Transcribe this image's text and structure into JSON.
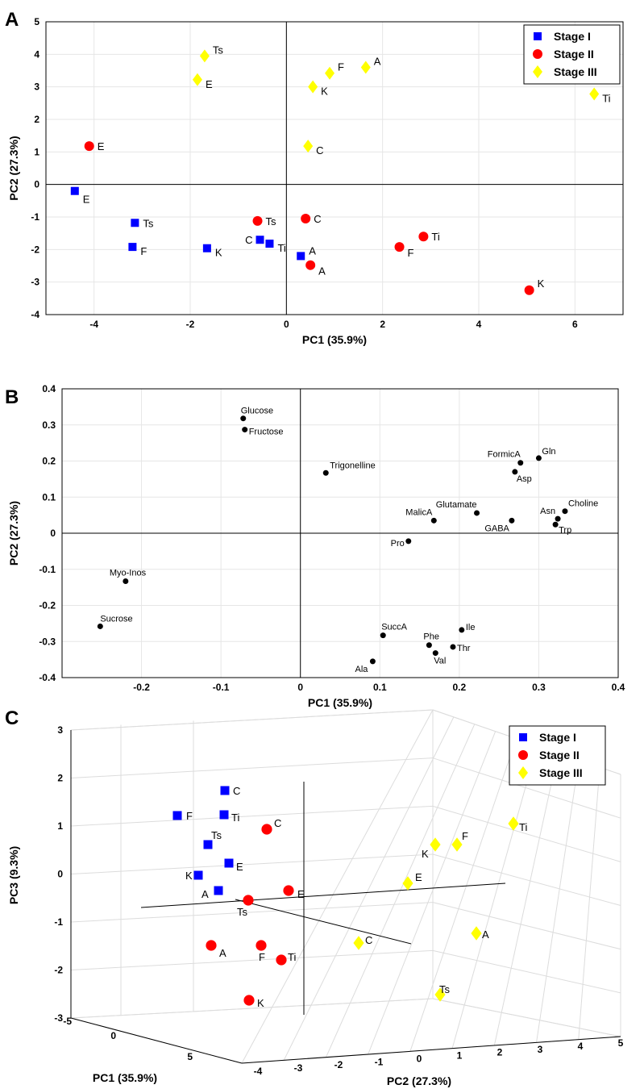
{
  "colors": {
    "stage1": "#0000ff",
    "stage2": "#ff0000",
    "stage3": "#ffff00",
    "metabolite": "#000000"
  },
  "chart_data": [
    {
      "panel": "A",
      "type": "scatter",
      "xlabel": "PC1 (35.9%)",
      "ylabel": "PC2 (27.3%)",
      "xlim": [
        -5,
        7
      ],
      "ylim": [
        -4,
        5
      ],
      "xticks": [
        "-4",
        "-2",
        "0",
        "2",
        "4",
        "6"
      ],
      "yticks": [
        "5",
        "4",
        "3",
        "2",
        "1",
        "0",
        "-1",
        "-2",
        "-3",
        "-4"
      ],
      "legend_position": "top-right",
      "grid": true,
      "series": [
        {
          "name": "Stage I",
          "marker": "square",
          "color_key": "stage1",
          "points": [
            {
              "label": "E",
              "x": -4.4,
              "y": -0.2
            },
            {
              "label": "Ts",
              "x": -3.15,
              "y": -1.18
            },
            {
              "label": "F",
              "x": -3.2,
              "y": -1.92
            },
            {
              "label": "K",
              "x": -1.65,
              "y": -1.96
            },
            {
              "label": "C",
              "x": -0.55,
              "y": -1.7
            },
            {
              "label": "Ti",
              "x": -0.35,
              "y": -1.82
            },
            {
              "label": "A",
              "x": 0.3,
              "y": -2.2
            }
          ]
        },
        {
          "name": "Stage II",
          "marker": "circle",
          "color_key": "stage2",
          "points": [
            {
              "label": "E",
              "x": -4.1,
              "y": 1.18
            },
            {
              "label": "Ts",
              "x": -0.6,
              "y": -1.12
            },
            {
              "label": "C",
              "x": 0.4,
              "y": -1.05
            },
            {
              "label": "A",
              "x": 0.5,
              "y": -2.48
            },
            {
              "label": "F",
              "x": 2.35,
              "y": -1.92
            },
            {
              "label": "Ti",
              "x": 2.85,
              "y": -1.6
            },
            {
              "label": "K",
              "x": 5.05,
              "y": -3.25
            }
          ]
        },
        {
          "name": "Stage III",
          "marker": "diamond",
          "color_key": "stage3",
          "points": [
            {
              "label": "Ts",
              "x": -1.7,
              "y": 3.95
            },
            {
              "label": "E",
              "x": -1.85,
              "y": 3.22
            },
            {
              "label": "K",
              "x": 0.55,
              "y": 3.0
            },
            {
              "label": "F",
              "x": 0.9,
              "y": 3.42
            },
            {
              "label": "A",
              "x": 1.65,
              "y": 3.6
            },
            {
              "label": "C",
              "x": 0.45,
              "y": 1.18
            },
            {
              "label": "Ti",
              "x": 6.4,
              "y": 2.78
            }
          ]
        }
      ]
    },
    {
      "panel": "B",
      "type": "scatter",
      "xlabel": "PC1 (35.9%)",
      "ylabel": "PC2 (27.3%)",
      "xlim": [
        -0.3,
        0.4
      ],
      "ylim": [
        -0.4,
        0.4
      ],
      "xticks": [
        "-0.2",
        "-0.1",
        "0",
        "0.1",
        "0.2",
        "0.3",
        "0.4"
      ],
      "yticks": [
        "0.4",
        "0.3",
        "0.2",
        "0.1",
        "0",
        "-0.1",
        "-0.2",
        "-0.3",
        "-0.4"
      ],
      "grid": true,
      "points": [
        {
          "label": "Glucose",
          "x": -0.072,
          "y": 0.318
        },
        {
          "label": "Fructose",
          "x": -0.07,
          "y": 0.287
        },
        {
          "label": "Trigonelline",
          "x": 0.032,
          "y": 0.167
        },
        {
          "label": "FormicA",
          "x": 0.277,
          "y": 0.195
        },
        {
          "label": "Gln",
          "x": 0.3,
          "y": 0.208
        },
        {
          "label": "Asp",
          "x": 0.27,
          "y": 0.17
        },
        {
          "label": "Glutamate",
          "x": 0.222,
          "y": 0.056
        },
        {
          "label": "MalicA",
          "x": 0.168,
          "y": 0.035
        },
        {
          "label": "GABA",
          "x": 0.266,
          "y": 0.035
        },
        {
          "label": "Choline",
          "x": 0.333,
          "y": 0.061
        },
        {
          "label": "Asn",
          "x": 0.324,
          "y": 0.04
        },
        {
          "label": "Trp",
          "x": 0.321,
          "y": 0.024
        },
        {
          "label": "Pro",
          "x": 0.136,
          "y": -0.022
        },
        {
          "label": "Myo-Inos",
          "x": -0.22,
          "y": -0.133
        },
        {
          "label": "Sucrose",
          "x": -0.252,
          "y": -0.258
        },
        {
          "label": "SuccA",
          "x": 0.104,
          "y": -0.283
        },
        {
          "label": "Ile",
          "x": 0.203,
          "y": -0.268
        },
        {
          "label": "Phe",
          "x": 0.162,
          "y": -0.31
        },
        {
          "label": "Thr",
          "x": 0.192,
          "y": -0.315
        },
        {
          "label": "Val",
          "x": 0.17,
          "y": -0.332
        },
        {
          "label": "Ala",
          "x": 0.091,
          "y": -0.355
        }
      ]
    },
    {
      "panel": "C",
      "type": "scatter3d",
      "xlabel": "PC1 (35.9%)",
      "ylabel": "PC2 (27.3%)",
      "zlabel": "PC3 (9.3%)",
      "xticks": [
        "-5",
        "0",
        "5"
      ],
      "yticks": [
        "-4",
        "-3",
        "-2",
        "-1",
        "0",
        "1",
        "2",
        "3",
        "4",
        "5"
      ],
      "zticks": [
        "3",
        "2",
        "1",
        "0",
        "-1",
        "-2",
        "-3"
      ],
      "legend_position": "top-right",
      "grid": true,
      "series": [
        {
          "name": "Stage I",
          "marker": "square",
          "color_key": "stage1",
          "points": [
            {
              "label": "C"
            },
            {
              "label": "F"
            },
            {
              "label": "Ti"
            },
            {
              "label": "Ts"
            },
            {
              "label": "E"
            },
            {
              "label": "K"
            },
            {
              "label": "A"
            }
          ]
        },
        {
          "name": "Stage II",
          "marker": "circle",
          "color_key": "stage2",
          "points": [
            {
              "label": "C"
            },
            {
              "label": "Ts"
            },
            {
              "label": "E"
            },
            {
              "label": "A"
            },
            {
              "label": "F"
            },
            {
              "label": "Ti"
            },
            {
              "label": "K"
            }
          ]
        },
        {
          "name": "Stage III",
          "marker": "diamond",
          "color_key": "stage3",
          "points": [
            {
              "label": "Ti"
            },
            {
              "label": "F"
            },
            {
              "label": "K"
            },
            {
              "label": "E"
            },
            {
              "label": "A"
            },
            {
              "label": "C"
            },
            {
              "label": "Ts"
            }
          ]
        }
      ]
    }
  ]
}
